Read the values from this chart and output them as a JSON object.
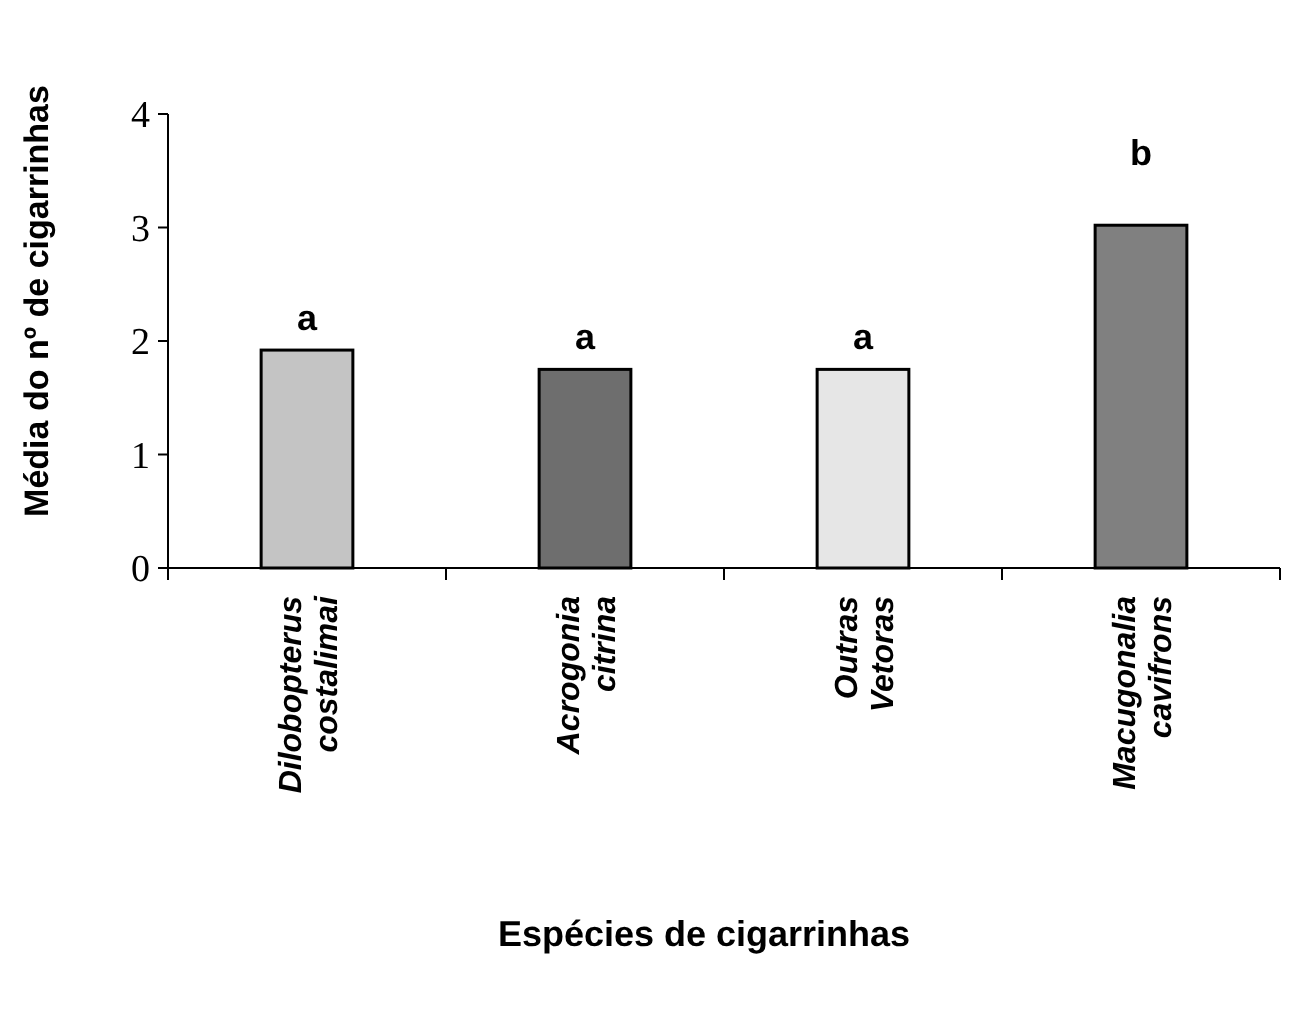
{
  "chart_data": {
    "type": "bar",
    "xlabel": "Espécies de cigarrinhas",
    "ylabel": "Média do nº de cigarrinhas",
    "categories": [
      "Dilobopterus costalimai",
      "Acrogonia citrina",
      "Outras Vetoras",
      "Macugonalia cavifrons"
    ],
    "values": [
      1.92,
      1.75,
      1.75,
      3.02
    ],
    "colors": [
      "#c4c4c4",
      "#6e6e6e",
      "#e6e6e6",
      "#808080"
    ],
    "ylim": [
      0,
      4
    ],
    "yticks": [
      0,
      1,
      2,
      3,
      4
    ],
    "annotations": [
      "a",
      "a",
      "a",
      "b"
    ]
  }
}
